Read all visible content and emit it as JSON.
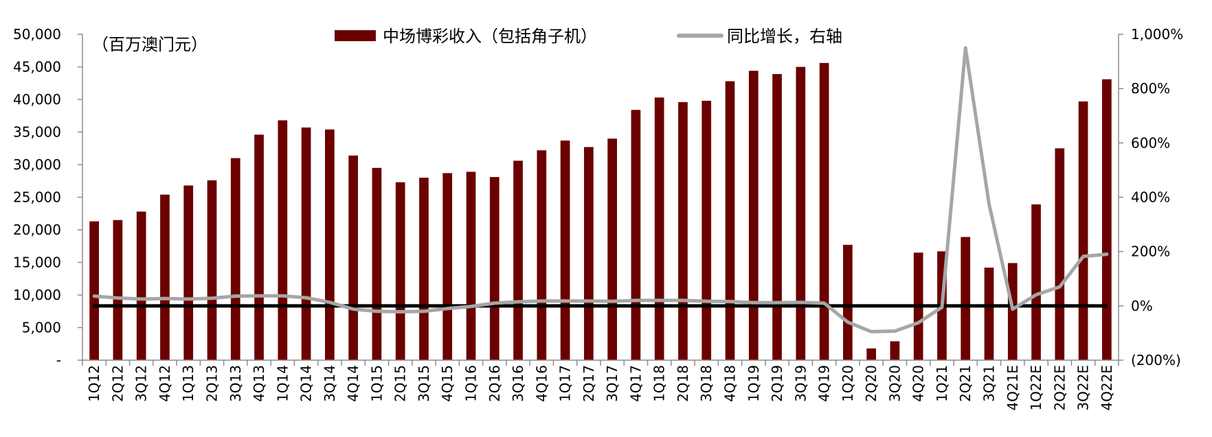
{
  "chart_data": {
    "type": "bar",
    "unit_label": "（百万澳门元）",
    "categories": [
      "1Q12",
      "2Q12",
      "3Q12",
      "4Q12",
      "1Q13",
      "2Q13",
      "3Q13",
      "4Q13",
      "1Q14",
      "2Q14",
      "3Q14",
      "4Q14",
      "1Q15",
      "2Q15",
      "3Q15",
      "4Q15",
      "1Q16",
      "2Q16",
      "3Q16",
      "4Q16",
      "1Q17",
      "2Q17",
      "3Q17",
      "4Q17",
      "1Q18",
      "2Q18",
      "3Q18",
      "4Q18",
      "1Q19",
      "2Q19",
      "3Q19",
      "4Q19",
      "1Q20",
      "2Q20",
      "3Q20",
      "4Q20",
      "1Q21",
      "2Q21",
      "3Q21",
      "4Q21E",
      "1Q22E",
      "2Q22E",
      "3Q22E",
      "4Q22E"
    ],
    "series": [
      {
        "name": "中场博彩收入（包括角子机）",
        "type": "bar",
        "axis": "left",
        "color": "#6b0000",
        "values": [
          21300,
          21500,
          22800,
          25400,
          26800,
          27600,
          31000,
          34600,
          36800,
          35700,
          35400,
          31400,
          29500,
          27300,
          28000,
          28700,
          28900,
          28100,
          30600,
          32200,
          33700,
          32700,
          34000,
          38400,
          40300,
          39600,
          39800,
          42800,
          44400,
          43900,
          45000,
          45600,
          17700,
          1800,
          2900,
          16500,
          16700,
          18900,
          14200,
          14900,
          23900,
          32500,
          39700,
          43100
        ]
      },
      {
        "name": "同比增长，右轴",
        "type": "line",
        "axis": "right",
        "color": "#a6a6a6",
        "values": [
          36,
          29,
          25,
          27,
          25,
          28,
          36,
          37,
          37,
          30,
          13,
          -12,
          -20,
          -22,
          -20,
          -10,
          -2,
          10,
          15,
          18,
          18,
          18,
          17,
          20,
          20,
          20,
          17,
          16,
          12,
          12,
          13,
          10,
          -60,
          -95,
          -93,
          -62,
          -5,
          950,
          375,
          -12,
          41,
          70,
          182,
          190
        ]
      }
    ],
    "left_axis": {
      "ylim": [
        0,
        50000
      ],
      "ticks": [
        0,
        5000,
        10000,
        15000,
        20000,
        25000,
        30000,
        35000,
        40000,
        45000,
        50000
      ],
      "tick_labels": [
        "-",
        "5,000",
        "10,000",
        "15,000",
        "20,000",
        "25,000",
        "30,000",
        "35,000",
        "40,000",
        "45,000",
        "50,000"
      ]
    },
    "right_axis": {
      "ylim": [
        -200,
        1000
      ],
      "ticks": [
        -200,
        0,
        200,
        400,
        600,
        800,
        1000
      ],
      "tick_labels": [
        "(200%)",
        "0%",
        "200%",
        "400%",
        "600%",
        "800%",
        "1,000%"
      ]
    },
    "zero_line_color": "#000000",
    "legend_position": "top-center",
    "grid": false
  }
}
